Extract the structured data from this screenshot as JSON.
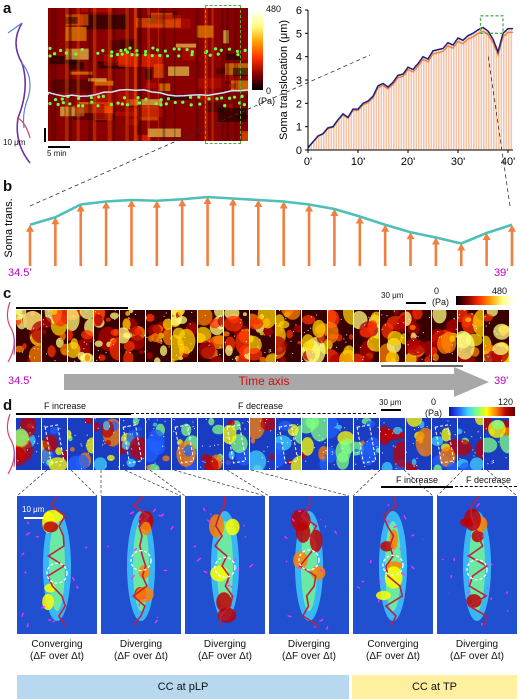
{
  "panels": {
    "a": "a",
    "b": "b",
    "c": "c",
    "d": "d"
  },
  "panel_a": {
    "colorbar_max": "480",
    "colorbar_min": "0",
    "colorbar_unit": "(Pa)",
    "scale_y": "10 μm",
    "scale_x": "5 min"
  },
  "panel_b": {
    "ylabel": "Soma trans.",
    "start": "34.5'",
    "end": "39'",
    "chart_data": {
      "type": "bar",
      "values": [
        0.55,
        0.65,
        0.82,
        0.86,
        0.88,
        0.87,
        0.89,
        0.92,
        0.9,
        0.88,
        0.86,
        0.82,
        0.76,
        0.66,
        0.55,
        0.45,
        0.38,
        0.3,
        0.44,
        0.55
      ],
      "ylim": [
        0,
        1
      ]
    }
  },
  "chart_a": {
    "type": "area",
    "ylabel": "Soma translocation (μm)",
    "yticks": [
      "0",
      "1",
      "2",
      "3",
      "4",
      "5",
      "6"
    ],
    "xticks": [
      "0'",
      "10'",
      "20'",
      "30'",
      "40'"
    ],
    "ylim": [
      0,
      6
    ],
    "xlim": [
      0,
      41
    ],
    "chart_data": {
      "x": [
        0,
        1,
        2,
        3,
        4,
        5,
        6,
        7,
        8,
        9,
        10,
        11,
        12,
        13,
        14,
        15,
        16,
        17,
        18,
        19,
        20,
        21,
        22,
        23,
        24,
        25,
        26,
        27,
        28,
        29,
        30,
        31,
        32,
        33,
        34,
        35,
        36,
        37,
        38,
        39,
        40,
        41
      ],
      "y": [
        0.1,
        0.35,
        0.6,
        0.7,
        0.95,
        1.0,
        1.3,
        1.55,
        1.4,
        1.75,
        1.75,
        2.0,
        2.1,
        2.3,
        2.75,
        2.85,
        2.7,
        2.9,
        3.2,
        3.25,
        3.55,
        3.45,
        3.7,
        4.0,
        3.9,
        4.25,
        4.3,
        4.35,
        4.6,
        4.5,
        4.8,
        4.7,
        4.9,
        5.0,
        5.15,
        5.25,
        5.1,
        4.75,
        4.2,
        5.0,
        5.2,
        5.2
      ]
    }
  },
  "panel_c": {
    "scale": "30 μm",
    "colorbar_min": "0",
    "colorbar_max": "480",
    "colorbar_unit": "(Pa)",
    "start": "34.5'",
    "end": "39'",
    "time_axis": "Time axis"
  },
  "panel_d": {
    "f_increase": "F increase",
    "f_decrease": "F decrease",
    "f_increase2": "F increase",
    "f_decrease2": "F decrease",
    "scale": "30 μm",
    "colorbar_min": "0",
    "colorbar_max": "120",
    "colorbar_unit": "(Pa)",
    "zoom_scale": "10 μm",
    "captions": [
      {
        "line1": "Converging",
        "line2": "(ΔF over Δt)"
      },
      {
        "line1": "Diverging",
        "line2": "(ΔF over Δt)"
      },
      {
        "line1": "Diverging",
        "line2": "(ΔF over Δt)"
      },
      {
        "line1": "Diverging",
        "line2": "(ΔF over Δt)"
      },
      {
        "line1": "Converging",
        "line2": "(ΔF over Δt)"
      },
      {
        "line1": "Diverging",
        "line2": "(ΔF over Δt)"
      }
    ],
    "bar_plp": "CC at pLP",
    "bar_tp": "CC at TP"
  },
  "colors": {
    "magenta": "#c000c0",
    "bar_orange": "#f08040",
    "line_teal": "#4fbfb8",
    "arrow_gray": "#9a9a9a",
    "time_red": "#d01010",
    "plp_blue": "#b8d8f0",
    "tp_yellow": "#fff0a0"
  }
}
